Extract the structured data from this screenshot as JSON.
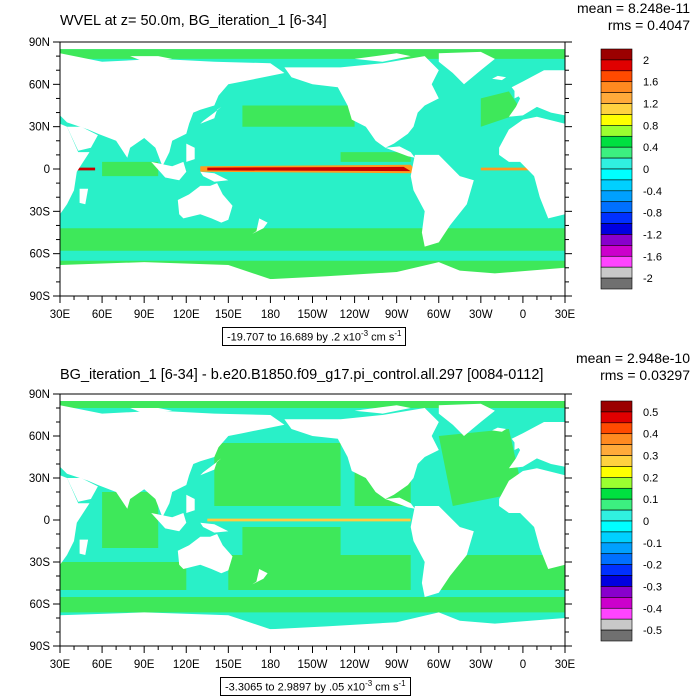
{
  "panels": [
    {
      "title": "WVEL at z=  50.0m, BG_iteration_1 [6-34]",
      "mean": "mean = 8.248e-11",
      "rms": "rms = 0.4047",
      "range_text": "-19.707 to 16.689 by .2 x10",
      "range_exp": "-3",
      "range_units": " cm s",
      "range_units_exp": "-1",
      "colorbar_labels": [
        "2",
        "1.6",
        "1.2",
        "0.8",
        "0.4",
        "0",
        "-0.4",
        "-0.8",
        "-1.2",
        "-1.6",
        "-2"
      ]
    },
    {
      "title": "BG_iteration_1 [6-34] - b.e20.B1850.f09_g17.pi_control.all.297 [0084-0112]",
      "mean": "mean = 2.948e-10",
      "rms": "rms = 0.03297",
      "range_text": "-3.3065 to 2.9897 by .05 x10",
      "range_exp": "-3",
      "range_units": " cm s",
      "range_units_exp": "-1",
      "colorbar_labels": [
        "0.5",
        "0.4",
        "0.3",
        "0.2",
        "0.1",
        "0",
        "-0.1",
        "-0.2",
        "-0.3",
        "-0.4",
        "-0.5"
      ]
    }
  ],
  "lat_labels": [
    "90N",
    "60N",
    "30N",
    "0",
    "30S",
    "60S",
    "90S"
  ],
  "lon_labels": [
    "30E",
    "60E",
    "90E",
    "120E",
    "150E",
    "180",
    "150W",
    "120W",
    "90W",
    "60W",
    "30W",
    "0",
    "30E"
  ],
  "colors": {
    "ocean_base": "#29f0c8",
    "ocean_green": "#3ee85a",
    "land": "#ffffff",
    "equator_red": "#c80000",
    "equator_orange": "#ff9a20",
    "colorbar": [
      "#9b0000",
      "#e00000",
      "#ff4a00",
      "#ff8a20",
      "#ffaa3a",
      "#ffd240",
      "#ffff00",
      "#9bff30",
      "#00e040",
      "#3cf080",
      "#30f0e0",
      "#00ffff",
      "#00d0ff",
      "#00a0ff",
      "#0070ff",
      "#0030ff",
      "#0000e0",
      "#8800cc",
      "#cc00cc",
      "#ff44ff",
      "#c8c8c8",
      "#707070"
    ]
  }
}
